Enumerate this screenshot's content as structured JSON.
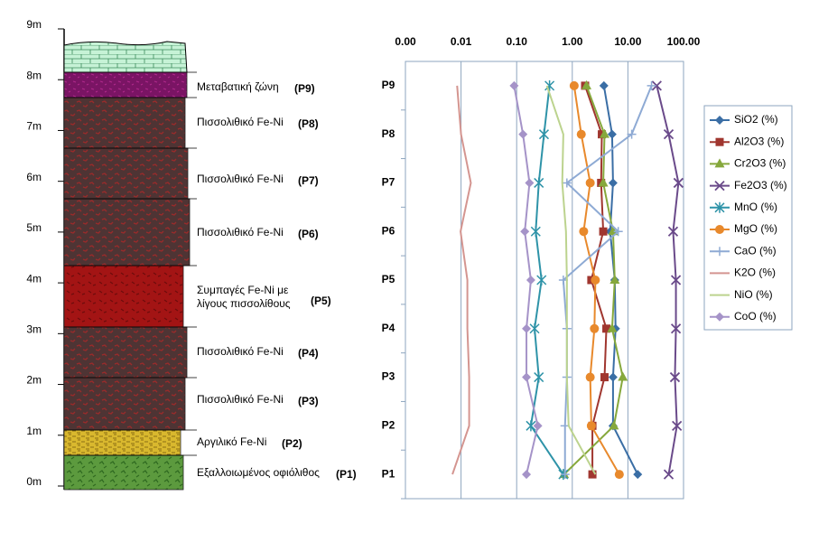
{
  "column": {
    "depth_labels": [
      "0m",
      "1m",
      "2m",
      "3m",
      "4m",
      "5m",
      "6m",
      "7m",
      "8m",
      "9m"
    ],
    "layers": [
      {
        "label": [
          "Μεταβατική ζώνη"
        ],
        "sample": "(P9)"
      },
      {
        "label": [
          "Πισσολιθικό Fe-Ni"
        ],
        "sample": "(P8)"
      },
      {
        "label": [
          "Πισσολιθικό Fe-Ni"
        ],
        "sample": "(P7)"
      },
      {
        "label": [
          "Πισσολιθικό Fe-Ni"
        ],
        "sample": "(P6)"
      },
      {
        "label": [
          "Συμπαγές Fe-Ni με",
          "λίγους πισσολίθους"
        ],
        "sample": "(P5)"
      },
      {
        "label": [
          "Πισσολιθικό Fe-Ni"
        ],
        "sample": "(P4)"
      },
      {
        "label": [
          "Πισσολιθικό Fe-Ni"
        ],
        "sample": "(P3)"
      },
      {
        "label": [
          "Αργιλικό Fe-Ni"
        ],
        "sample": "(P2)"
      },
      {
        "label": [
          "Εξαλλοιωμένος οφιόλιθος"
        ],
        "sample": "(P1)"
      }
    ]
  },
  "chart_data": {
    "type": "line",
    "log_x": true,
    "grid": true,
    "legend": "right",
    "categories": [
      "P1",
      "P2",
      "P3",
      "P4",
      "P5",
      "P6",
      "P7",
      "P8",
      "P9"
    ],
    "xlim": [
      0.001,
      100
    ],
    "xticks": [
      {
        "value": 0.001,
        "label": "0.00"
      },
      {
        "value": 0.01,
        "label": "0.01"
      },
      {
        "value": 0.1,
        "label": "0.10"
      },
      {
        "value": 1,
        "label": "1.00"
      },
      {
        "value": 10,
        "label": "10.00"
      },
      {
        "value": 100,
        "label": "100.00"
      }
    ],
    "series": [
      {
        "name": "SiO2 (%)",
        "color": "#3a6ea5",
        "marker": "diamond",
        "values": [
          15,
          5.4,
          5.4,
          6,
          5.8,
          4.8,
          5.4,
          5.2,
          3.7
        ]
      },
      {
        "name": "Al2O3 (%)",
        "color": "#a0362f",
        "marker": "square",
        "values": [
          2.3,
          2.3,
          3.8,
          4.1,
          2.2,
          3.6,
          3.3,
          3.4,
          1.7
        ]
      },
      {
        "name": "Cr2O3 (%)",
        "color": "#86a83c",
        "marker": "triangle",
        "values": [
          0.71,
          5.6,
          8.1,
          5.2,
          5.8,
          5.4,
          3.6,
          3.8,
          1.8
        ]
      },
      {
        "name": "Fe2O3 (%)",
        "color": "#6a4a8a",
        "marker": "x",
        "values": [
          54,
          76,
          70,
          73,
          73,
          65,
          81,
          54,
          33
        ]
      },
      {
        "name": "MnO (%)",
        "color": "#2e93a8",
        "marker": "star",
        "values": [
          0.69,
          0.18,
          0.25,
          0.21,
          0.28,
          0.22,
          0.25,
          0.31,
          0.39
        ]
      },
      {
        "name": "MgO (%)",
        "color": "#e8892c",
        "marker": "circle",
        "values": [
          7,
          2.2,
          2.1,
          2.5,
          2.6,
          1.6,
          2.1,
          1.45,
          1.08
        ]
      },
      {
        "name": "CaO (%)",
        "color": "#8eaad4",
        "marker": "plus",
        "values": [
          0.74,
          0.74,
          0.8,
          0.8,
          0.69,
          6.7,
          0.8,
          11.7,
          26.6
        ]
      },
      {
        "name": "K2O (%)",
        "color": "#d49590",
        "marker": "none",
        "values": [
          0.007,
          0.014,
          0.014,
          0.013,
          0.013,
          0.0098,
          0.015,
          0.01,
          0.0085
        ]
      },
      {
        "name": "NiO (%)",
        "color": "#bcd38e",
        "marker": "none",
        "values": [
          2.6,
          0.86,
          0.8,
          0.8,
          0.8,
          0.77,
          0.66,
          0.69,
          0.35
        ]
      },
      {
        "name": "CoO (%)",
        "color": "#a593c8",
        "marker": "diamond",
        "values": [
          0.15,
          0.24,
          0.15,
          0.15,
          0.18,
          0.14,
          0.17,
          0.13,
          0.09
        ]
      }
    ]
  }
}
